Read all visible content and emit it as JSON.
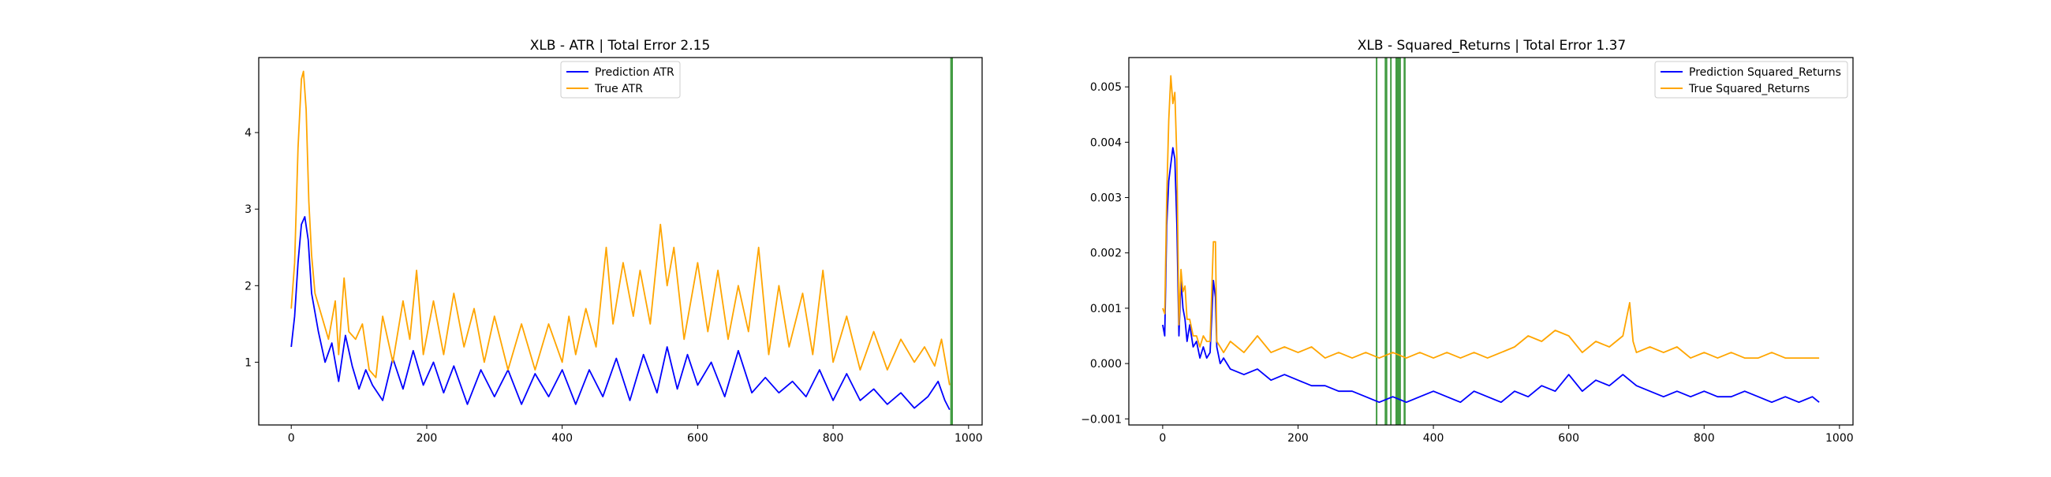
{
  "chart_data": [
    {
      "type": "line",
      "title": "XLB - ATR | Total Error 2.15",
      "xlabel": "",
      "ylabel": "",
      "xlim": [
        -48,
        1020
      ],
      "ylim": [
        0.18,
        4.98
      ],
      "x_ticks": [
        0,
        200,
        400,
        600,
        800,
        1000
      ],
      "y_ticks": [
        1,
        2,
        3,
        4
      ],
      "x_tick_labels": [
        "0",
        "200",
        "400",
        "600",
        "800",
        "1000"
      ],
      "y_tick_labels": [
        "1",
        "2",
        "3",
        "4"
      ],
      "legend_position": "upper-center",
      "grid": false,
      "highlights": [
        {
          "x": 973,
          "width": 4
        }
      ],
      "highlight_color": "#228b22",
      "series": [
        {
          "name": "Prediction ATR",
          "color": "#0000ff",
          "x": [
            0,
            5,
            10,
            15,
            20,
            25,
            30,
            40,
            50,
            60,
            70,
            80,
            90,
            100,
            110,
            120,
            135,
            150,
            165,
            180,
            195,
            210,
            225,
            240,
            260,
            280,
            300,
            320,
            340,
            360,
            380,
            400,
            420,
            440,
            460,
            480,
            500,
            520,
            540,
            555,
            570,
            585,
            600,
            620,
            640,
            660,
            680,
            700,
            720,
            740,
            760,
            780,
            800,
            820,
            840,
            860,
            880,
            900,
            920,
            940,
            955,
            965,
            972
          ],
          "values": [
            1.2,
            1.6,
            2.3,
            2.8,
            2.9,
            2.6,
            1.9,
            1.4,
            1.0,
            1.25,
            0.75,
            1.35,
            0.95,
            0.65,
            0.9,
            0.7,
            0.5,
            1.05,
            0.65,
            1.15,
            0.7,
            1.0,
            0.6,
            0.95,
            0.45,
            0.9,
            0.55,
            0.9,
            0.45,
            0.85,
            0.55,
            0.9,
            0.45,
            0.9,
            0.55,
            1.05,
            0.5,
            1.1,
            0.6,
            1.2,
            0.65,
            1.1,
            0.7,
            1.0,
            0.55,
            1.15,
            0.6,
            0.8,
            0.6,
            0.75,
            0.55,
            0.9,
            0.5,
            0.85,
            0.5,
            0.65,
            0.45,
            0.6,
            0.4,
            0.55,
            0.75,
            0.5,
            0.38
          ]
        },
        {
          "name": "True ATR",
          "color": "#ffa500",
          "x": [
            0,
            5,
            10,
            15,
            18,
            22,
            26,
            30,
            35,
            45,
            55,
            65,
            70,
            78,
            85,
            95,
            105,
            115,
            125,
            135,
            150,
            165,
            175,
            185,
            195,
            210,
            225,
            240,
            255,
            270,
            285,
            300,
            320,
            340,
            360,
            380,
            400,
            410,
            420,
            435,
            450,
            465,
            475,
            490,
            505,
            515,
            530,
            545,
            555,
            565,
            580,
            600,
            615,
            630,
            645,
            660,
            675,
            690,
            705,
            720,
            735,
            755,
            770,
            785,
            800,
            820,
            840,
            860,
            880,
            900,
            920,
            935,
            950,
            960,
            972
          ],
          "values": [
            1.7,
            2.3,
            3.8,
            4.7,
            4.8,
            4.3,
            3.1,
            2.4,
            1.9,
            1.6,
            1.3,
            1.8,
            1.1,
            2.1,
            1.4,
            1.3,
            1.5,
            0.9,
            0.8,
            1.6,
            1.0,
            1.8,
            1.3,
            2.2,
            1.1,
            1.8,
            1.1,
            1.9,
            1.2,
            1.7,
            1.0,
            1.6,
            0.9,
            1.5,
            0.9,
            1.5,
            1.0,
            1.6,
            1.1,
            1.7,
            1.2,
            2.5,
            1.5,
            2.3,
            1.6,
            2.2,
            1.5,
            2.8,
            2.0,
            2.5,
            1.3,
            2.3,
            1.4,
            2.2,
            1.3,
            2.0,
            1.4,
            2.5,
            1.1,
            2.0,
            1.2,
            1.9,
            1.1,
            2.2,
            1.0,
            1.6,
            0.9,
            1.4,
            0.9,
            1.3,
            1.0,
            1.2,
            0.95,
            1.3,
            0.7
          ]
        }
      ]
    },
    {
      "type": "line",
      "title": "XLB - Squared_Returns | Total Error 1.37",
      "xlabel": "",
      "ylabel": "",
      "xlim": [
        -50,
        1020
      ],
      "ylim": [
        -0.00111,
        0.00553
      ],
      "x_ticks": [
        0,
        200,
        400,
        600,
        800,
        1000
      ],
      "y_ticks": [
        -0.001,
        0.0,
        0.001,
        0.002,
        0.003,
        0.004,
        0.005
      ],
      "x_tick_labels": [
        "0",
        "200",
        "400",
        "600",
        "800",
        "1000"
      ],
      "y_tick_labels": [
        "−0.001",
        "0.000",
        "0.001",
        "0.002",
        "0.003",
        "0.004",
        "0.005"
      ],
      "legend_position": "upper-right",
      "grid": false,
      "highlights": [
        {
          "x": 315,
          "width": 2
        },
        {
          "x": 328,
          "width": 4
        },
        {
          "x": 336,
          "width": 2
        },
        {
          "x": 344,
          "width": 8
        },
        {
          "x": 356,
          "width": 3
        }
      ],
      "highlight_color": "#228b22",
      "series": [
        {
          "name": "Prediction Squared_Returns",
          "color": "#0000ff",
          "x": [
            0,
            3,
            6,
            9,
            12,
            15,
            18,
            21,
            24,
            27,
            30,
            33,
            36,
            40,
            45,
            50,
            55,
            60,
            65,
            70,
            75,
            78,
            80,
            85,
            90,
            100,
            120,
            140,
            160,
            180,
            200,
            220,
            240,
            260,
            280,
            300,
            320,
            340,
            360,
            380,
            400,
            420,
            440,
            460,
            480,
            500,
            520,
            540,
            560,
            580,
            600,
            620,
            640,
            660,
            680,
            700,
            720,
            740,
            760,
            780,
            800,
            820,
            840,
            860,
            880,
            900,
            920,
            940,
            960,
            970
          ],
          "values": [
            0.0007,
            0.0005,
            0.0025,
            0.0033,
            0.0036,
            0.0039,
            0.0037,
            0.0025,
            0.0005,
            0.0015,
            0.001,
            0.0008,
            0.0004,
            0.0007,
            0.0003,
            0.0004,
            0.0001,
            0.0003,
            0.0001,
            0.0002,
            0.0015,
            0.0012,
            0.0003,
            0.0,
            0.0001,
            -0.0001,
            -0.0002,
            -0.0001,
            -0.0003,
            -0.0002,
            -0.0003,
            -0.0004,
            -0.0004,
            -0.0005,
            -0.0005,
            -0.0006,
            -0.0007,
            -0.0006,
            -0.0007,
            -0.0006,
            -0.0005,
            -0.0006,
            -0.0007,
            -0.0005,
            -0.0006,
            -0.0007,
            -0.0005,
            -0.0006,
            -0.0004,
            -0.0005,
            -0.0002,
            -0.0005,
            -0.0003,
            -0.0004,
            -0.0002,
            -0.0004,
            -0.0005,
            -0.0006,
            -0.0005,
            -0.0006,
            -0.0005,
            -0.0006,
            -0.0006,
            -0.0005,
            -0.0006,
            -0.0007,
            -0.0006,
            -0.0007,
            -0.0006,
            -0.0007
          ]
        },
        {
          "name": "True Squared_Returns",
          "color": "#ffa500",
          "x": [
            0,
            3,
            6,
            9,
            12,
            15,
            18,
            21,
            24,
            27,
            30,
            33,
            36,
            40,
            45,
            50,
            55,
            60,
            65,
            70,
            75,
            78,
            80,
            85,
            90,
            100,
            120,
            140,
            160,
            180,
            200,
            220,
            240,
            260,
            280,
            300,
            320,
            340,
            360,
            380,
            400,
            420,
            440,
            460,
            480,
            500,
            520,
            540,
            560,
            580,
            600,
            620,
            640,
            660,
            680,
            690,
            695,
            700,
            720,
            740,
            760,
            780,
            800,
            820,
            840,
            860,
            880,
            900,
            920,
            940,
            960,
            970
          ],
          "values": [
            0.001,
            0.0009,
            0.003,
            0.0044,
            0.0052,
            0.0047,
            0.0049,
            0.0037,
            0.0007,
            0.0017,
            0.0013,
            0.0014,
            0.0008,
            0.0008,
            0.0005,
            0.0005,
            0.0003,
            0.0005,
            0.0004,
            0.0004,
            0.0022,
            0.0022,
            0.0004,
            0.0003,
            0.0002,
            0.0004,
            0.0002,
            0.0005,
            0.0002,
            0.0003,
            0.0002,
            0.0003,
            0.0001,
            0.0002,
            0.0001,
            0.0002,
            0.0001,
            0.0002,
            0.0001,
            0.0002,
            0.0001,
            0.0002,
            0.0001,
            0.0002,
            0.0001,
            0.0002,
            0.0003,
            0.0005,
            0.0004,
            0.0006,
            0.0005,
            0.0002,
            0.0004,
            0.0003,
            0.0005,
            0.0011,
            0.0004,
            0.0002,
            0.0003,
            0.0002,
            0.0003,
            0.0001,
            0.0002,
            0.0001,
            0.0002,
            0.0001,
            0.0001,
            0.0002,
            0.0001,
            0.0001,
            0.0001,
            0.0001
          ]
        }
      ]
    }
  ]
}
